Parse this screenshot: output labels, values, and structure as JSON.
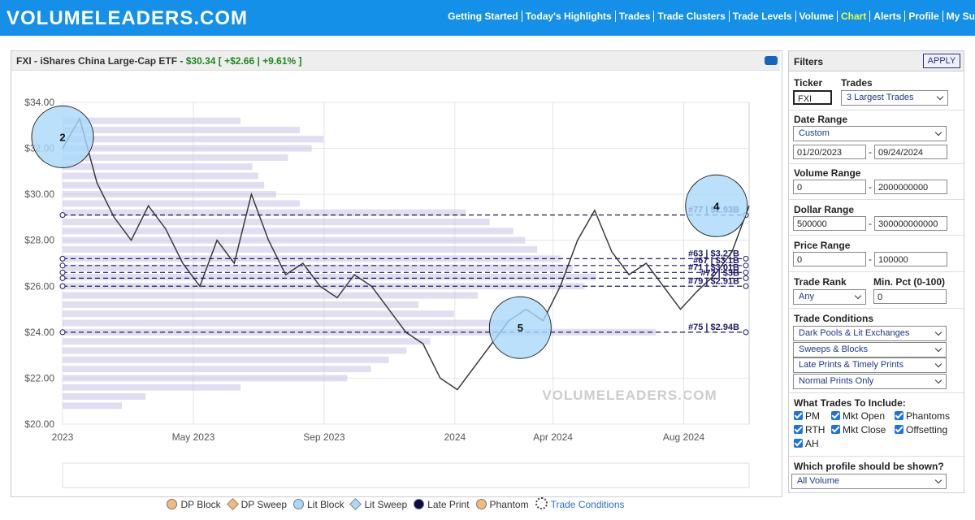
{
  "header": {
    "logo": "VOLUMELEADERS.COM",
    "nav": [
      "Getting Started",
      "Today's Highlights",
      "Trades",
      "Trade Clusters",
      "Trade Levels",
      "Volume",
      "Chart",
      "Alerts",
      "Profile",
      "My Su"
    ],
    "active_index": 6
  },
  "chart_panel": {
    "title": "FXI - iShares China Large-Cap ETF -",
    "price": "$30.34",
    "change": "[ +$2.66 | +9.61% ]"
  },
  "chart_data": {
    "type": "line",
    "color": "#3a3a3a",
    "watermark": "VOLUMELEADERS.COM",
    "xlim": [
      "2023-01",
      "2024-10"
    ],
    "xticks": [
      {
        "value": "2023-01",
        "label": "2023"
      },
      {
        "value": "2023-05",
        "label": "May 2023"
      },
      {
        "value": "2023-09",
        "label": "Sep 2023"
      },
      {
        "value": "2024-01",
        "label": "2024"
      },
      {
        "value": "2024-04",
        "label": "Apr 2024"
      },
      {
        "value": "2024-08",
        "label": "Aug 2024"
      }
    ],
    "ylim": [
      20,
      34
    ],
    "yticks": [
      {
        "value": 20,
        "label": "$20.00"
      },
      {
        "value": 22,
        "label": "$22.00"
      },
      {
        "value": 24,
        "label": "$24.00"
      },
      {
        "value": 26,
        "label": "$26.00"
      },
      {
        "value": 28,
        "label": "$28.00"
      },
      {
        "value": 30,
        "label": "$30.00"
      },
      {
        "value": 32,
        "label": "$32.00"
      },
      {
        "value": 34,
        "label": "$34.00"
      }
    ],
    "grid": true,
    "values": [
      32,
      33.3,
      30.5,
      29,
      28,
      29.5,
      28.5,
      27,
      26,
      28,
      27,
      30,
      28,
      26.5,
      27,
      26,
      25.5,
      26.5,
      26,
      25,
      24,
      23.5,
      22,
      21.5,
      22.5,
      23.5,
      24.5,
      25,
      24.5,
      26,
      28,
      29.3,
      27.5,
      26.5,
      27,
      26,
      25,
      25.8,
      26.5,
      27.5,
      29.5
    ],
    "profile": {
      "color": "#c9c3e6",
      "prices": [
        20.8,
        21.2,
        21.6,
        22.0,
        22.4,
        22.8,
        23.2,
        23.6,
        24.0,
        24.4,
        24.8,
        25.2,
        25.6,
        26.0,
        26.4,
        26.8,
        27.2,
        27.6,
        28.0,
        28.4,
        28.8,
        29.2,
        29.6,
        30.0,
        30.4,
        30.8,
        31.2,
        31.6,
        32.0,
        32.4,
        32.8,
        33.2
      ],
      "volumes": [
        10,
        14,
        30,
        48,
        52,
        55,
        58,
        62,
        100,
        75,
        66,
        60,
        70,
        88,
        90,
        86,
        84,
        80,
        78,
        76,
        72,
        68,
        40,
        36,
        34,
        33,
        32,
        38,
        42,
        44,
        40,
        30
      ]
    },
    "levels": [
      {
        "price": 29.1,
        "label": "#77 | $2.93B"
      },
      {
        "price": 27.2,
        "label": "#63 | $3.27B"
      },
      {
        "price": 26.9,
        "label": "#67 | $3.1B"
      },
      {
        "price": 26.6,
        "label": "#71 | $3.01B"
      },
      {
        "price": 26.35,
        "label": "#72 | $3B"
      },
      {
        "price": 26.0,
        "label": "#79 | $2.91B"
      },
      {
        "price": 24.0,
        "label": "#75 | $2.94B"
      }
    ],
    "level_color": "#1d1a6b",
    "bubbles": [
      {
        "x": "2023-01",
        "price": 32.5,
        "rank": "2"
      },
      {
        "x": "2024-03",
        "price": 24.2,
        "rank": "5"
      },
      {
        "x": "2024-09",
        "price": 29.5,
        "rank": "4"
      }
    ],
    "bubble_color": "#a9d8fb"
  },
  "legend": [
    {
      "name": "DP Block",
      "color": "#f5b97a",
      "shape": "circle"
    },
    {
      "name": "DP Sweep",
      "color": "#f5b97a",
      "shape": "diamond"
    },
    {
      "name": "Lit Block",
      "color": "#a9d8fb",
      "shape": "circle"
    },
    {
      "name": "Lit Sweep",
      "color": "#a9d8fb",
      "shape": "diamond"
    },
    {
      "name": "Late Print",
      "color": "#0e0a4a",
      "shape": "circle"
    },
    {
      "name": "Phantom",
      "color": "#f5b97a",
      "shape": "circle"
    },
    {
      "name": "Trade Conditions",
      "color": "#2a6fd6",
      "shape": "gear"
    }
  ],
  "filters": {
    "title": "Filters",
    "apply": "APPLY",
    "ticker_label": "Ticker",
    "ticker": "FXI",
    "trades_label": "Trades",
    "trades": "3 Largest Trades",
    "date_label": "Date Range",
    "date_mode": "Custom",
    "date_from": "01/20/2023",
    "date_to": "09/24/2024",
    "volume_label": "Volume Range",
    "volume_from": "0",
    "volume_to": "2000000000",
    "dollar_label": "Dollar Range",
    "dollar_from": "500000",
    "dollar_to": "300000000000",
    "price_label": "Price Range",
    "price_from": "0",
    "price_to": "100000",
    "rank_label": "Trade Rank",
    "rank": "Any",
    "pct_label": "Min. Pct (0-100)",
    "pct": "0",
    "conditions_label": "Trade Conditions",
    "conditions": [
      "Dark Pools & Lit Exchanges",
      "Sweeps & Blocks",
      "Late Prints & Timely Prints",
      "Normal Prints Only"
    ],
    "include_label": "What Trades To Include:",
    "include": [
      "PM",
      "Mkt Open",
      "Phantoms",
      "RTH",
      "Mkt Close",
      "Offsetting",
      "AH"
    ],
    "profile_label": "Which profile should be shown?",
    "profile": "All Volume",
    "dash": "-"
  }
}
